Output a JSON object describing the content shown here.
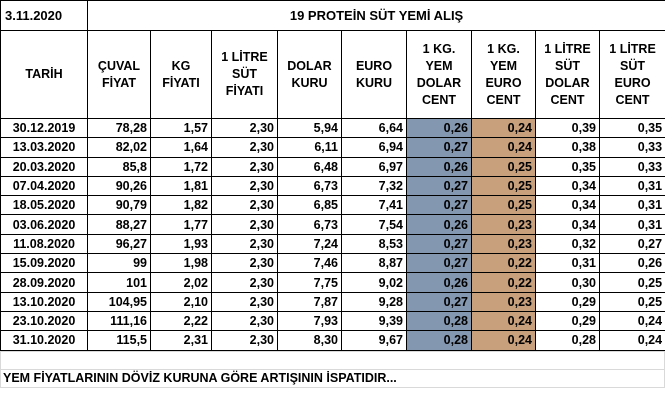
{
  "header": {
    "date": "3.11.2020",
    "title": "19 PROTEİN SÜT YEMİ ALIŞ"
  },
  "table": {
    "columns": [
      "TARİH",
      "ÇUVAL\nFİYAT",
      "KG\nFİYATI",
      "1 LİTRE\nSÜT\nFİYATI",
      "DOLAR\nKURU",
      "EURO\nKURU",
      "1 KG.\nYEM\nDOLAR\nCENT",
      "1 KG.\nYEM\nEURO\nCENT",
      "1 LİTRE\nSÜT\nDOLAR\nCENT",
      "1 LİTRE\nSÜT\nEURO\nCENT"
    ],
    "rows": [
      [
        "30.12.2019",
        "78,28",
        "1,57",
        "2,30",
        "5,94",
        "6,64",
        "0,26",
        "0,24",
        "0,39",
        "0,35"
      ],
      [
        "13.03.2020",
        "82,02",
        "1,64",
        "2,30",
        "6,11",
        "6,94",
        "0,27",
        "0,24",
        "0,38",
        "0,33"
      ],
      [
        "20.03.2020",
        "85,8",
        "1,72",
        "2,30",
        "6,48",
        "6,97",
        "0,26",
        "0,25",
        "0,35",
        "0,33"
      ],
      [
        "07.04.2020",
        "90,26",
        "1,81",
        "2,30",
        "6,73",
        "7,32",
        "0,27",
        "0,25",
        "0,34",
        "0,31"
      ],
      [
        "18.05.2020",
        "90,79",
        "1,82",
        "2,30",
        "6,85",
        "7,41",
        "0,27",
        "0,25",
        "0,34",
        "0,31"
      ],
      [
        "03.06.2020",
        "88,27",
        "1,77",
        "2,30",
        "6,73",
        "7,54",
        "0,26",
        "0,23",
        "0,34",
        "0,31"
      ],
      [
        "11.08.2020",
        "96,27",
        "1,93",
        "2,30",
        "7,24",
        "8,53",
        "0,27",
        "0,23",
        "0,32",
        "0,27"
      ],
      [
        "15.09.2020",
        "99",
        "1,98",
        "2,30",
        "7,46",
        "8,87",
        "0,27",
        "0,22",
        "0,31",
        "0,26"
      ],
      [
        "28.09.2020",
        "101",
        "2,02",
        "2,30",
        "7,75",
        "9,02",
        "0,26",
        "0,22",
        "0,30",
        "0,25"
      ],
      [
        "13.10.2020",
        "104,95",
        "2,10",
        "2,30",
        "7,87",
        "9,28",
        "0,27",
        "0,23",
        "0,29",
        "0,25"
      ],
      [
        "23.10.2020",
        "111,16",
        "2,22",
        "2,30",
        "7,93",
        "9,39",
        "0,28",
        "0,24",
        "0,29",
        "0,24"
      ],
      [
        "31.10.2020",
        "115,5",
        "2,31",
        "2,30",
        "8,30",
        "9,67",
        "0,28",
        "0,24",
        "0,28",
        "0,24"
      ]
    ]
  },
  "footer": {
    "note": "YEM FİYATLARININ DÖVİZ KURUNA GÖRE ARTIŞININ İSPATIDIR..."
  }
}
